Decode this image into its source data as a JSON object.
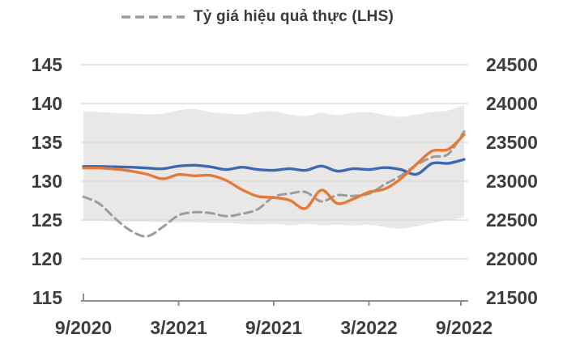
{
  "chart_data": {
    "type": "line",
    "title": "",
    "legend_label": "Tỷ giá hiệu quả thực (LHS)",
    "legend_position": "top",
    "grid": true,
    "x_tick_labels": [
      "9/2020",
      "3/2021",
      "9/2021",
      "3/2022",
      "9/2022"
    ],
    "months": 24,
    "left_axis_ticks": [
      145,
      140,
      135,
      130,
      125,
      120,
      115
    ],
    "left_axis_range": [
      115,
      145
    ],
    "right_axis_ticks": [
      24500,
      24000,
      23500,
      23000,
      22500,
      22000,
      21500
    ],
    "right_axis_range": [
      21500,
      24500
    ],
    "band": {
      "name": "shaded-range-band",
      "axis": "left",
      "upper": [
        139.0,
        138.9,
        138.8,
        138.7,
        138.6,
        138.7,
        139.1,
        139.3,
        138.9,
        138.7,
        138.6,
        138.9,
        139.0,
        138.6,
        138.4,
        138.8,
        138.5,
        138.8,
        138.9,
        138.5,
        138.3,
        138.6,
        138.9,
        139.1,
        139.8
      ],
      "lower": [
        124.9,
        124.9,
        124.8,
        124.8,
        124.8,
        124.7,
        124.7,
        124.7,
        124.6,
        124.6,
        124.5,
        124.4,
        124.5,
        124.3,
        124.5,
        124.3,
        124.4,
        124.3,
        124.4,
        124.1,
        123.9,
        124.2,
        124.6,
        125.0,
        125.3
      ]
    },
    "series": [
      {
        "name": "ty-gia-hieu-qua-thuc",
        "label": "Tỷ giá hiệu quả thực (LHS)",
        "axis": "left",
        "style": "dashed",
        "color": "#9c9c9c",
        "values": [
          128.0,
          127.1,
          125.2,
          123.6,
          122.9,
          124.1,
          125.6,
          126.0,
          125.9,
          125.5,
          125.8,
          126.4,
          128.0,
          128.4,
          128.6,
          127.4,
          128.2,
          128.1,
          128.4,
          129.6,
          130.7,
          132.1,
          133.1,
          133.5,
          136.4
        ]
      },
      {
        "name": "blue-line",
        "label": "",
        "axis": "right",
        "style": "solid",
        "color": "#3e68b2",
        "values": [
          23190,
          23190,
          23185,
          23180,
          23170,
          23160,
          23195,
          23205,
          23185,
          23150,
          23180,
          23150,
          23140,
          23160,
          23140,
          23195,
          23130,
          23160,
          23150,
          23175,
          23150,
          23090,
          23230,
          23230,
          23280
        ]
      },
      {
        "name": "orange-line",
        "label": "",
        "axis": "right",
        "style": "solid",
        "color": "#e4793a",
        "values": [
          23170,
          23170,
          23155,
          23130,
          23090,
          23030,
          23085,
          23070,
          23075,
          23010,
          22890,
          22805,
          22790,
          22755,
          22650,
          22885,
          22715,
          22770,
          22860,
          22900,
          23030,
          23220,
          23390,
          23410,
          23600
        ]
      }
    ],
    "colors": {
      "band": "#e9e8e6",
      "gridline": "#d7d7d7",
      "axis": "#8f8f8f",
      "text": "#3d3d3d",
      "gray": "#9c9c9c",
      "blue": "#3e68b2",
      "orange": "#e4793a"
    }
  }
}
